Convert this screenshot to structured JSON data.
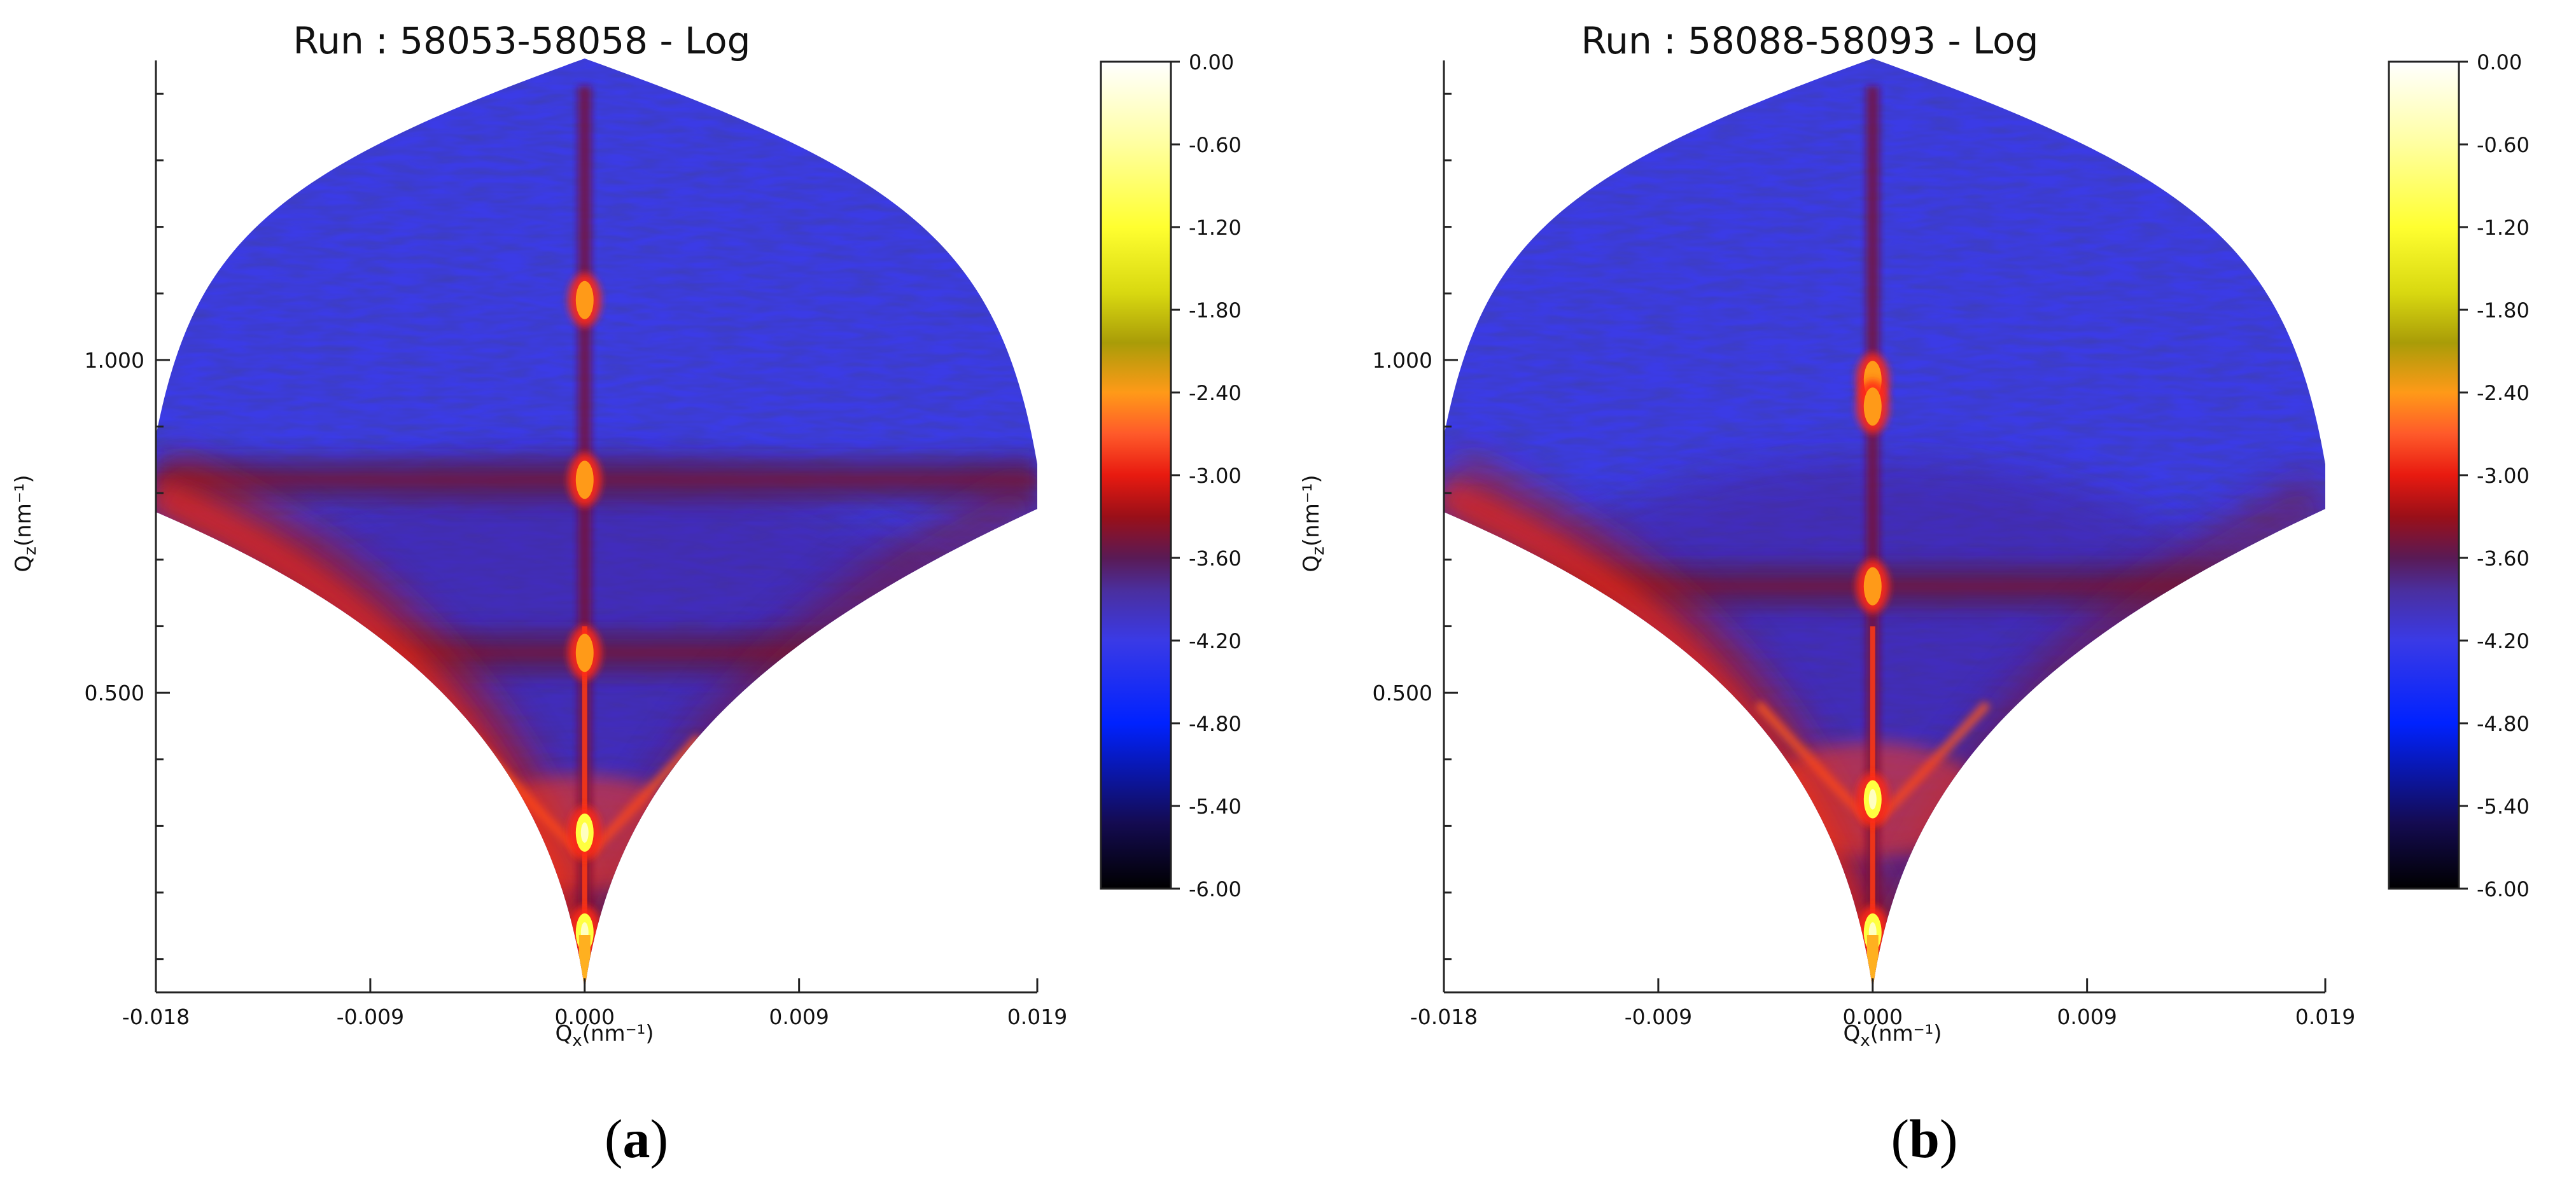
{
  "chart_data": [
    {
      "type": "heatmap",
      "panel_label": "(a)",
      "panel_letter": "a",
      "title": "Run : 58053-58058 - Log",
      "xlabel": "Q",
      "xlabel_sub": "x",
      "xlabel_unit": "(nm⁻¹)",
      "ylabel": "Q",
      "ylabel_sub": "z",
      "ylabel_unit": "(nm⁻¹)",
      "xlim": [
        -0.018,
        0.019
      ],
      "ylim": [
        0.05,
        1.45
      ],
      "x_ticks": [
        -0.018,
        -0.009,
        0.0,
        0.009,
        0.019
      ],
      "x_tick_labels": [
        "-0.018",
        "-0.009",
        "0.000",
        "0.009",
        "0.019"
      ],
      "y_ticks": [
        1.0,
        0.5
      ],
      "y_tick_labels": [
        "1.000",
        "0.500"
      ],
      "colorbar": {
        "range": [
          -6.0,
          0.0
        ],
        "tick_labels": [
          "0.00",
          "-0.60",
          "-1.20",
          "-1.80",
          "-2.40",
          "-3.00",
          "-3.60",
          "-4.20",
          "-4.80",
          "-5.40",
          "-6.00"
        ],
        "tick_values": [
          0.0,
          -0.6,
          -1.2,
          -1.8,
          -2.4,
          -3.0,
          -3.6,
          -4.2,
          -4.8,
          -5.4,
          -6.0
        ],
        "colors": [
          "#000000",
          "#1a0f5e",
          "#0b2ff5",
          "#3b35e2",
          "#4b249a",
          "#cc1d0c",
          "#ff4214",
          "#ff9a18",
          "#a89f0a",
          "#ffff25",
          "#ffffff"
        ]
      },
      "specular_peaks_qz": [
        1.09,
        0.82,
        0.56,
        0.29,
        0.14
      ],
      "diffuse_sheets_qz": [
        0.82,
        0.56
      ]
    },
    {
      "type": "heatmap",
      "panel_label": "(b)",
      "panel_letter": "b",
      "title": "Run : 58088-58093 - Log",
      "xlabel": "Q",
      "xlabel_sub": "x",
      "xlabel_unit": "(nm⁻¹)",
      "ylabel": "Q",
      "ylabel_sub": "z",
      "ylabel_unit": "(nm⁻¹)",
      "xlim": [
        -0.018,
        0.019
      ],
      "ylim": [
        0.05,
        1.45
      ],
      "x_ticks": [
        -0.018,
        -0.009,
        0.0,
        0.009,
        0.019
      ],
      "x_tick_labels": [
        "-0.018",
        "-0.009",
        "0.000",
        "0.009",
        "0.019"
      ],
      "y_ticks": [
        1.0,
        0.5
      ],
      "y_tick_labels": [
        "1.000",
        "0.500"
      ],
      "colorbar": {
        "range": [
          -6.0,
          0.0
        ],
        "tick_labels": [
          "0.00",
          "-0.60",
          "-1.20",
          "-1.80",
          "-2.40",
          "-3.00",
          "-3.60",
          "-4.20",
          "-4.80",
          "-5.40",
          "-6.00"
        ],
        "tick_values": [
          0.0,
          -0.6,
          -1.2,
          -1.8,
          -2.4,
          -3.0,
          -3.6,
          -4.2,
          -4.8,
          -5.4,
          -6.0
        ],
        "colors": [
          "#000000",
          "#1a0f5e",
          "#0b2ff5",
          "#3b35e2",
          "#4b249a",
          "#cc1d0c",
          "#ff4214",
          "#ff9a18",
          "#a89f0a",
          "#ffff25",
          "#ffffff"
        ]
      },
      "specular_peaks_qz": [
        0.97,
        0.93,
        0.66,
        0.34,
        0.14
      ],
      "diffuse_sheets_qz": [
        0.66
      ]
    }
  ]
}
